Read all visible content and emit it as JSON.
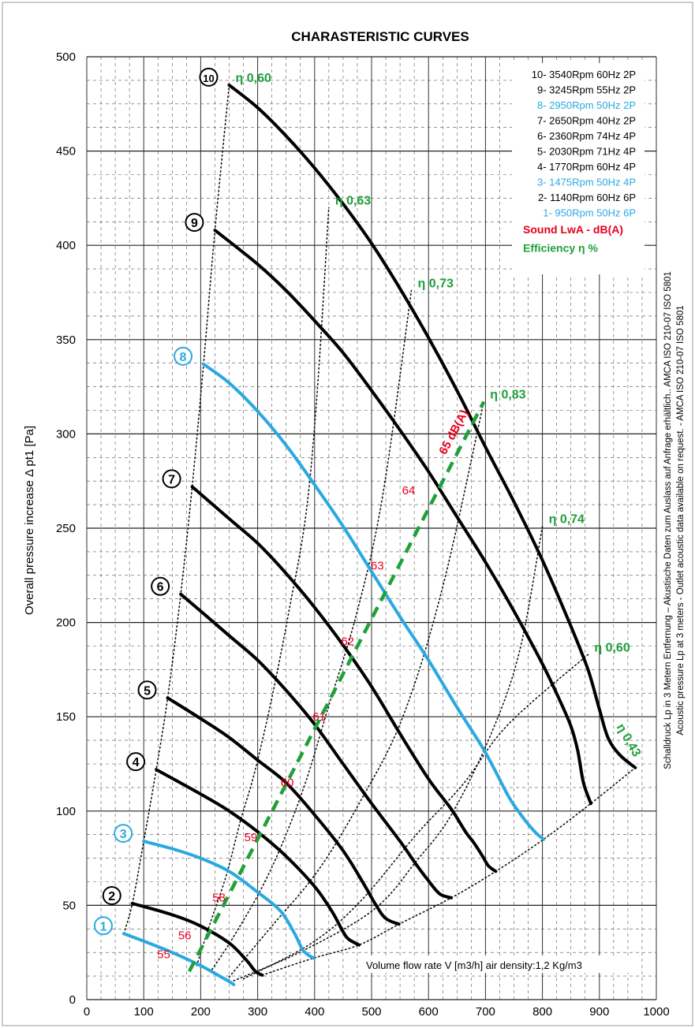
{
  "chart_data": {
    "type": "line",
    "title": "CHARASTERISTIC CURVES",
    "xlabel": "Volume flow rate  V [m3/h] air density:1,2 Kg/m3",
    "ylabel": "Overall pressure increase    Δ pt1 [Pa]",
    "xlim": [
      0,
      1000
    ],
    "ylim": [
      0,
      500
    ],
    "x_ticks": [
      "0",
      "100",
      "200",
      "300",
      "400",
      "500",
      "600",
      "700",
      "800",
      "900",
      "1000"
    ],
    "y_ticks": [
      "0",
      "50",
      "100",
      "150",
      "200",
      "250",
      "300",
      "350",
      "400",
      "450",
      "500"
    ],
    "grid": true,
    "legend_position": "top-right",
    "legend": [
      {
        "text": "10- 3540Rpm 60Hz 2P",
        "color": "#000000"
      },
      {
        "text": "9- 3245Rpm 55Hz 2P",
        "color": "#000000"
      },
      {
        "text": "8- 2950Rpm 50Hz 2P",
        "color": "#2aa9e0"
      },
      {
        "text": "7- 2650Rpm 40Hz 2P",
        "color": "#000000"
      },
      {
        "text": "6- 2360Rpm 74Hz 4P",
        "color": "#000000"
      },
      {
        "text": "5- 2030Rpm 71Hz 4P",
        "color": "#000000"
      },
      {
        "text": "4- 1770Rpm 60Hz 4P",
        "color": "#000000"
      },
      {
        "text": "3- 1475Rpm 50Hz 4P",
        "color": "#2aa9e0"
      },
      {
        "text": "2- 1140Rpm 60Hz 6P",
        "color": "#000000"
      },
      {
        "text": "1-   950Rpm 50Hz 6P",
        "color": "#2aa9e0"
      },
      {
        "text": "Sound LwA - dB(A)",
        "color": "#e8001c"
      },
      {
        "text": "Efficiency η %",
        "color": "#1fa03a"
      }
    ],
    "series": [
      {
        "name": "1",
        "color": "#2aa9e0",
        "points": [
          [
            65,
            35
          ],
          [
            100,
            31
          ],
          [
            150,
            25
          ],
          [
            200,
            18
          ],
          [
            230,
            13
          ],
          [
            248,
            10
          ],
          [
            258,
            8
          ]
        ]
      },
      {
        "name": "2",
        "color": "#000000",
        "points": [
          [
            80,
            51
          ],
          [
            150,
            45
          ],
          [
            200,
            39
          ],
          [
            250,
            30
          ],
          [
            280,
            21
          ],
          [
            296,
            15
          ],
          [
            308,
            13
          ]
        ]
      },
      {
        "name": "3",
        "color": "#2aa9e0",
        "points": [
          [
            100,
            84
          ],
          [
            150,
            80
          ],
          [
            200,
            75
          ],
          [
            250,
            68
          ],
          [
            300,
            57
          ],
          [
            340,
            47
          ],
          [
            365,
            35
          ],
          [
            380,
            26
          ],
          [
            398,
            22
          ]
        ]
      },
      {
        "name": "4",
        "color": "#000000",
        "points": [
          [
            122,
            122
          ],
          [
            200,
            109
          ],
          [
            250,
            100
          ],
          [
            300,
            89
          ],
          [
            350,
            76
          ],
          [
            400,
            60
          ],
          [
            430,
            47
          ],
          [
            450,
            36
          ],
          [
            460,
            32
          ],
          [
            478,
            29
          ]
        ]
      },
      {
        "name": "5",
        "color": "#000000",
        "points": [
          [
            142,
            160
          ],
          [
            200,
            149
          ],
          [
            250,
            139
          ],
          [
            300,
            127
          ],
          [
            350,
            115
          ],
          [
            400,
            98
          ],
          [
            450,
            79
          ],
          [
            485,
            62
          ],
          [
            508,
            50
          ],
          [
            525,
            43
          ],
          [
            548,
            40
          ]
        ]
      },
      {
        "name": "6",
        "color": "#000000",
        "points": [
          [
            165,
            215
          ],
          [
            200,
            206
          ],
          [
            250,
            193
          ],
          [
            300,
            180
          ],
          [
            350,
            164
          ],
          [
            400,
            146
          ],
          [
            450,
            125
          ],
          [
            500,
            104
          ],
          [
            550,
            84
          ],
          [
            580,
            71
          ],
          [
            600,
            63
          ],
          [
            620,
            56
          ],
          [
            640,
            54
          ]
        ]
      },
      {
        "name": "7",
        "color": "#000000",
        "points": [
          [
            185,
            272
          ],
          [
            250,
            255
          ],
          [
            300,
            242
          ],
          [
            350,
            226
          ],
          [
            400,
            208
          ],
          [
            450,
            188
          ],
          [
            500,
            166
          ],
          [
            550,
            141
          ],
          [
            600,
            117
          ],
          [
            640,
            101
          ],
          [
            665,
            89
          ],
          [
            680,
            83
          ],
          [
            695,
            76
          ],
          [
            705,
            71
          ],
          [
            718,
            68
          ]
        ]
      },
      {
        "name": "8",
        "color": "#2aa9e0",
        "points": [
          [
            205,
            337
          ],
          [
            250,
            327
          ],
          [
            300,
            312
          ],
          [
            350,
            294
          ],
          [
            400,
            273
          ],
          [
            450,
            251
          ],
          [
            500,
            227
          ],
          [
            550,
            203
          ],
          [
            600,
            180
          ],
          [
            650,
            155
          ],
          [
            700,
            131
          ],
          [
            740,
            108
          ],
          [
            760,
            99
          ],
          [
            775,
            93
          ],
          [
            790,
            88
          ],
          [
            802,
            85
          ]
        ]
      },
      {
        "name": "9",
        "color": "#000000",
        "points": [
          [
            225,
            408
          ],
          [
            300,
            390
          ],
          [
            350,
            376
          ],
          [
            400,
            360
          ],
          [
            450,
            343
          ],
          [
            500,
            323
          ],
          [
            550,
            302
          ],
          [
            600,
            280
          ],
          [
            650,
            256
          ],
          [
            700,
            232
          ],
          [
            750,
            206
          ],
          [
            800,
            178
          ],
          [
            830,
            159
          ],
          [
            850,
            145
          ],
          [
            862,
            132
          ],
          [
            872,
            115
          ],
          [
            885,
            104
          ]
        ]
      },
      {
        "name": "10",
        "color": "#000000",
        "points": [
          [
            250,
            485
          ],
          [
            300,
            473
          ],
          [
            350,
            458
          ],
          [
            400,
            441
          ],
          [
            450,
            422
          ],
          [
            500,
            401
          ],
          [
            550,
            377
          ],
          [
            600,
            351
          ],
          [
            650,
            323
          ],
          [
            700,
            293
          ],
          [
            750,
            264
          ],
          [
            800,
            233
          ],
          [
            850,
            198
          ],
          [
            880,
            175
          ],
          [
            900,
            154
          ],
          [
            915,
            139
          ],
          [
            935,
            130
          ],
          [
            963,
            123
          ]
        ]
      }
    ],
    "efficiency_lines": [
      {
        "label": "η 0,60",
        "points": [
          [
            65,
            35
          ],
          [
            80,
            51
          ],
          [
            100,
            84
          ],
          [
            122,
            122
          ],
          [
            142,
            160
          ],
          [
            165,
            215
          ],
          [
            185,
            272
          ],
          [
            205,
            337
          ],
          [
            225,
            408
          ],
          [
            250,
            485
          ]
        ]
      },
      {
        "label": "η 0,63",
        "points": [
          [
            193,
            18
          ],
          [
            215,
            39
          ],
          [
            245,
            66
          ],
          [
            270,
            95
          ],
          [
            295,
            121
          ],
          [
            325,
            160
          ],
          [
            355,
            206
          ],
          [
            385,
            258
          ],
          [
            405,
            324
          ],
          [
            425,
            420
          ]
        ]
      },
      {
        "label": "η 0,73",
        "points": [
          [
            220,
            16
          ],
          [
            255,
            32
          ],
          [
            305,
            58
          ],
          [
            345,
            84
          ],
          [
            385,
            116
          ],
          [
            425,
            156
          ],
          [
            475,
            206
          ],
          [
            520,
            268
          ],
          [
            570,
            376
          ]
        ]
      },
      {
        "label": "η 0,83",
        "points": [
          [
            250,
            12
          ],
          [
            325,
            39
          ],
          [
            405,
            68
          ],
          [
            480,
            105
          ],
          [
            555,
            150
          ],
          [
            625,
            219
          ],
          [
            697,
            317
          ]
        ]
      },
      {
        "label": "η 0,74",
        "points": [
          [
            258,
            10
          ],
          [
            380,
            26
          ],
          [
            505,
            48
          ],
          [
            580,
            74
          ],
          [
            640,
            98
          ],
          [
            710,
            141
          ],
          [
            760,
            185
          ],
          [
            800,
            251
          ]
        ]
      },
      {
        "label": "η 0,60",
        "points": [
          [
            275,
            11
          ],
          [
            395,
            30
          ],
          [
            480,
            52
          ],
          [
            580,
            88
          ],
          [
            660,
            114
          ],
          [
            740,
            146
          ],
          [
            880,
            183
          ]
        ]
      },
      {
        "label": "η 0,43",
        "points": [
          [
            308,
            13
          ],
          [
            398,
            22
          ],
          [
            478,
            29
          ],
          [
            548,
            40
          ],
          [
            640,
            54
          ],
          [
            718,
            68
          ],
          [
            802,
            85
          ],
          [
            885,
            104
          ],
          [
            963,
            123
          ]
        ]
      }
    ],
    "sound_line": {
      "label": "65 dB(A)",
      "points": [
        [
          180,
          15
        ],
        [
          697,
          317
        ]
      ],
      "labels": [
        {
          "text": "55",
          "x": 135,
          "y": 22
        },
        {
          "text": "56",
          "x": 172,
          "y": 32
        },
        {
          "text": "58",
          "x": 232,
          "y": 52
        },
        {
          "text": "59",
          "x": 288,
          "y": 84
        },
        {
          "text": "60",
          "x": 352,
          "y": 113
        },
        {
          "text": "61",
          "x": 408,
          "y": 148
        },
        {
          "text": "62",
          "x": 458,
          "y": 188
        },
        {
          "text": "63",
          "x": 510,
          "y": 228
        },
        {
          "text": "64",
          "x": 565,
          "y": 268
        },
        {
          "text": "65 dB(A)",
          "x": 650,
          "y": 300
        }
      ]
    }
  },
  "side_text": {
    "line1": "Schalldruck Lp in 3 Metern Entfernung – Akustische Daten zum Auslass auf Anfrage erhältlich..  AMCA ISO 210-07  ISO 5801",
    "line2": "Acoustic pressure Lp at 3 meters - Outlet acoustic data available on request. - AMCA ISO 210-07 ISO 5801"
  }
}
